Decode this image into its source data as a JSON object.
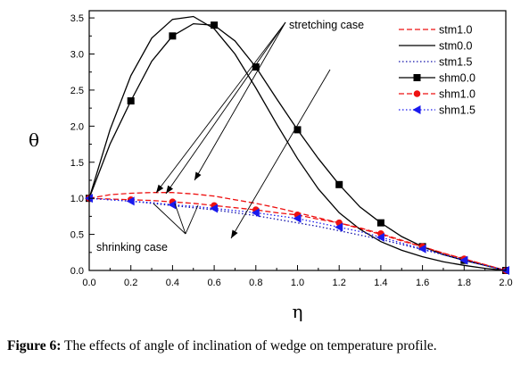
{
  "caption": {
    "label": "Figure 6:",
    "text": "The effects of angle of inclination of wedge on temperature profile."
  },
  "chart_data": {
    "type": "line",
    "xlabel": "η",
    "ylabel": "θ",
    "xlim": [
      0.0,
      2.0
    ],
    "ylim": [
      0.0,
      3.6
    ],
    "xticks": [
      "0.0",
      "0.2",
      "0.4",
      "0.6",
      "0.8",
      "1.0",
      "1.2",
      "1.4",
      "1.6",
      "1.8",
      "2.0"
    ],
    "yticks": [
      "0.0",
      "0.5",
      "1.0",
      "1.5",
      "2.0",
      "2.5",
      "3.0",
      "3.5"
    ],
    "grid": false,
    "legend_position": "top-right",
    "annotations": [
      {
        "text": "stretching case"
      },
      {
        "text": "shrinking case"
      }
    ],
    "series": [
      {
        "name": "stm1.0",
        "color": "#ee1111",
        "line": "dashed",
        "marker": "none",
        "x": [
          0,
          0.1,
          0.2,
          0.3,
          0.4,
          0.5,
          0.6,
          0.7,
          0.8,
          0.9,
          1.0,
          1.1,
          1.2,
          1.3,
          1.4,
          1.5,
          1.6,
          1.7,
          1.8,
          1.9,
          2.0
        ],
        "y": [
          1.0,
          1.05,
          1.07,
          1.08,
          1.08,
          1.06,
          1.03,
          0.98,
          0.93,
          0.87,
          0.8,
          0.73,
          0.66,
          0.58,
          0.5,
          0.41,
          0.33,
          0.24,
          0.16,
          0.08,
          0.0
        ]
      },
      {
        "name": "stm0.0",
        "color": "#000000",
        "line": "solid",
        "marker": "none",
        "x": [
          0,
          0.1,
          0.2,
          0.3,
          0.4,
          0.5,
          0.6,
          0.7,
          0.8,
          0.9,
          1.0,
          1.1,
          1.2,
          1.3,
          1.4,
          1.5,
          1.6,
          1.7,
          1.8,
          1.9,
          2.0
        ],
        "y": [
          1.0,
          1.95,
          2.7,
          3.22,
          3.48,
          3.52,
          3.35,
          3.0,
          2.53,
          2.03,
          1.55,
          1.13,
          0.8,
          0.57,
          0.4,
          0.28,
          0.19,
          0.12,
          0.07,
          0.03,
          0.0
        ]
      },
      {
        "name": "stm1.5",
        "color": "#1010aa",
        "line": "dotted",
        "marker": "none",
        "x": [
          0,
          0.1,
          0.2,
          0.3,
          0.4,
          0.5,
          0.6,
          0.7,
          0.8,
          0.9,
          1.0,
          1.1,
          1.2,
          1.3,
          1.4,
          1.5,
          1.6,
          1.7,
          1.8,
          1.9,
          2.0
        ],
        "y": [
          1.0,
          0.98,
          0.96,
          0.93,
          0.9,
          0.87,
          0.84,
          0.8,
          0.76,
          0.71,
          0.66,
          0.61,
          0.55,
          0.49,
          0.43,
          0.36,
          0.29,
          0.22,
          0.15,
          0.07,
          0.0
        ]
      },
      {
        "name": "shm0.0",
        "color": "#000000",
        "line": "solid",
        "marker": "square",
        "x": [
          0,
          0.1,
          0.2,
          0.3,
          0.4,
          0.5,
          0.6,
          0.7,
          0.8,
          0.9,
          1.0,
          1.1,
          1.2,
          1.3,
          1.4,
          1.5,
          1.6,
          1.7,
          1.8,
          1.9,
          2.0
        ],
        "y": [
          1.0,
          1.75,
          2.35,
          2.9,
          3.25,
          3.42,
          3.4,
          3.18,
          2.82,
          2.38,
          1.95,
          1.55,
          1.19,
          0.88,
          0.66,
          0.47,
          0.33,
          0.22,
          0.14,
          0.07,
          0.0
        ],
        "marker_x": [
          0.0,
          0.2,
          0.4,
          0.6,
          0.8,
          1.0,
          1.2,
          1.4,
          1.6,
          1.8,
          2.0
        ],
        "marker_y": [
          1.0,
          2.35,
          3.25,
          3.4,
          2.82,
          1.95,
          1.19,
          0.66,
          0.33,
          0.14,
          0.0
        ]
      },
      {
        "name": "shm1.0",
        "color": "#ee1111",
        "line": "dashed",
        "marker": "circle",
        "x": [
          0,
          0.1,
          0.2,
          0.3,
          0.4,
          0.5,
          0.6,
          0.7,
          0.8,
          0.9,
          1.0,
          1.1,
          1.2,
          1.3,
          1.4,
          1.5,
          1.6,
          1.7,
          1.8,
          1.9,
          2.0
        ],
        "y": [
          1.0,
          0.99,
          0.98,
          0.97,
          0.95,
          0.93,
          0.9,
          0.87,
          0.84,
          0.8,
          0.77,
          0.71,
          0.66,
          0.59,
          0.51,
          0.42,
          0.33,
          0.24,
          0.16,
          0.08,
          0.0
        ],
        "marker_x": [
          0.0,
          0.2,
          0.4,
          0.6,
          0.8,
          1.0,
          1.2,
          1.4,
          1.6,
          1.8,
          2.0
        ],
        "marker_y": [
          1.0,
          0.98,
          0.95,
          0.9,
          0.84,
          0.77,
          0.66,
          0.51,
          0.33,
          0.16,
          0.0
        ]
      },
      {
        "name": "shm1.5",
        "color": "#1a1aee",
        "line": "dotted",
        "marker": "triangle-left",
        "x": [
          0,
          0.1,
          0.2,
          0.3,
          0.4,
          0.5,
          0.6,
          0.7,
          0.8,
          0.9,
          1.0,
          1.1,
          1.2,
          1.3,
          1.4,
          1.5,
          1.6,
          1.7,
          1.8,
          1.9,
          2.0
        ],
        "y": [
          1.0,
          0.98,
          0.96,
          0.94,
          0.91,
          0.89,
          0.86,
          0.83,
          0.8,
          0.76,
          0.72,
          0.66,
          0.6,
          0.54,
          0.46,
          0.38,
          0.3,
          0.22,
          0.14,
          0.07,
          0.0
        ],
        "marker_x": [
          0.0,
          0.2,
          0.4,
          0.6,
          0.8,
          1.0,
          1.2,
          1.4,
          1.6,
          1.8,
          2.0
        ],
        "marker_y": [
          1.0,
          0.96,
          0.91,
          0.86,
          0.8,
          0.72,
          0.6,
          0.46,
          0.3,
          0.14,
          0.0
        ]
      }
    ]
  }
}
